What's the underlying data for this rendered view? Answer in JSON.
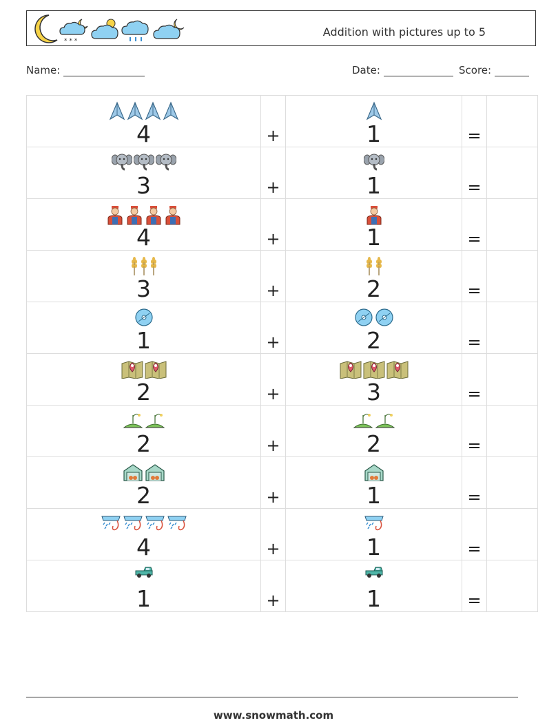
{
  "header": {
    "title": "Addition with pictures up to 5",
    "weather_icons": [
      "crescent-moon-icon",
      "cloud-moon-snow-icon",
      "cloud-sun-icon",
      "cloud-rain-icon",
      "cloud-moon-icon"
    ]
  },
  "info": {
    "name_label": "Name:",
    "date_label": "Date:",
    "score_label": "Score:"
  },
  "rows": [
    {
      "left_icon": "paper-plane-icon",
      "left_count": "4",
      "op": "+",
      "right_icon": "paper-plane-icon",
      "right_count": "1",
      "eq": "="
    },
    {
      "left_icon": "elephant-icon",
      "left_count": "3",
      "op": "+",
      "right_icon": "elephant-icon",
      "right_count": "1",
      "eq": "="
    },
    {
      "left_icon": "farmer-icon",
      "left_count": "4",
      "op": "+",
      "right_icon": "farmer-icon",
      "right_count": "1",
      "eq": "="
    },
    {
      "left_icon": "wheat-icon",
      "left_count": "3",
      "op": "+",
      "right_icon": "wheat-icon",
      "right_count": "2",
      "eq": "="
    },
    {
      "left_icon": "cd-disc-icon",
      "left_count": "1",
      "op": "+",
      "right_icon": "cd-disc-icon",
      "right_count": "2",
      "eq": "="
    },
    {
      "left_icon": "map-pin-icon",
      "left_count": "2",
      "op": "+",
      "right_icon": "map-pin-icon",
      "right_count": "3",
      "eq": "="
    },
    {
      "left_icon": "sprout-icon",
      "left_count": "2",
      "op": "+",
      "right_icon": "sprout-icon",
      "right_count": "2",
      "eq": "="
    },
    {
      "left_icon": "greenhouse-icon",
      "left_count": "2",
      "op": "+",
      "right_icon": "greenhouse-icon",
      "right_count": "1",
      "eq": "="
    },
    {
      "left_icon": "sprinkler-icon",
      "left_count": "4",
      "op": "+",
      "right_icon": "sprinkler-icon",
      "right_count": "1",
      "eq": "="
    },
    {
      "left_icon": "pickup-truck-icon",
      "left_count": "1",
      "op": "+",
      "right_icon": "pickup-truck-icon",
      "right_count": "1",
      "eq": "="
    }
  ],
  "footer": {
    "url": "www.snowmath.com"
  }
}
